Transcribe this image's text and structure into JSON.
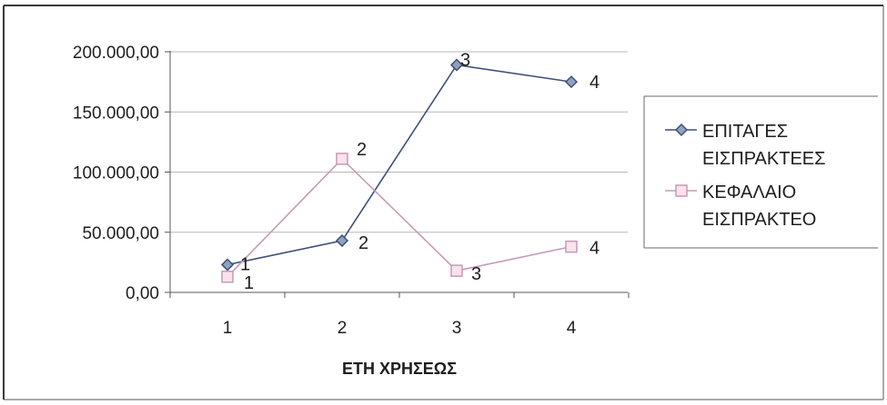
{
  "chart_data": {
    "type": "line",
    "categories": [
      "1",
      "2",
      "3",
      "4"
    ],
    "xlabel": "ΕΤΗ ΧΡΗΣΕΩΣ",
    "ylabel": "",
    "ylim": [
      0,
      200000
    ],
    "y_ticks": [
      "0,00",
      "50.000,00",
      "100.000,00",
      "150.000,00",
      "200.000,00"
    ],
    "grid": true,
    "legend_position": "right",
    "series": [
      {
        "name": "ΕΠΙΤΑΓΕΣ ΕΙΣΠΡΑΚΤΕΕΣ",
        "legend_lines": [
          "ΕΠΙΤΑΓΕΣ",
          "ΕΙΣΠΡΑΚΤΕΕΣ"
        ],
        "values": [
          23000,
          43000,
          189000,
          175000
        ],
        "point_labels": [
          "1",
          "2",
          "3",
          "4"
        ],
        "color": "#3f4f78",
        "marker": "diamond",
        "marker_fill": "#8fa3c0"
      },
      {
        "name": "ΚΕΦΑΛΑΙΟ ΕΙΣΠΡΑΚΤΕΟ",
        "legend_lines": [
          "ΚΕΦΑΛΑΙΟ",
          "ΕΙΣΠΡΑΚΤΕΟ"
        ],
        "values": [
          13000,
          111000,
          18000,
          38000
        ],
        "point_labels": [
          "1",
          "2",
          "3",
          "4"
        ],
        "color": "#c49ab7",
        "marker": "square",
        "marker_fill": "#fbe3ee"
      }
    ]
  }
}
